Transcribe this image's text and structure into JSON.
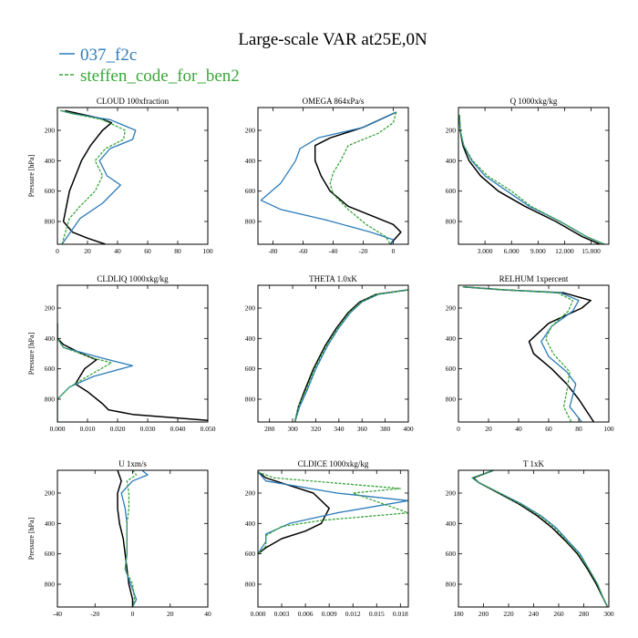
{
  "figure": {
    "title": "Large-scale VAR at25E,0N",
    "colors": {
      "series1": "#2b7bba",
      "series2": "#3aa53a",
      "obs": "#000000"
    },
    "legend": [
      {
        "label": "037_f2c",
        "color": "#2b7bba",
        "dashed": false
      },
      {
        "label": "steffen_code_for_ben2",
        "color": "#3aa53a",
        "dashed": true
      }
    ]
  },
  "chart_data": [
    {
      "type": "line",
      "title": "CLOUD  100xfraction",
      "xlabel": "",
      "ylabel": "Pressure [hPa]",
      "xlim": [
        0,
        100
      ],
      "ylim": [
        950,
        50
      ],
      "grid": false,
      "xticks": [
        0,
        20,
        40,
        60,
        80,
        100
      ],
      "xtick_labels": [
        "0",
        "20",
        "40",
        "60",
        "80",
        "100"
      ],
      "yticks": [
        200,
        400,
        600,
        800
      ],
      "ytick_labels": [
        "200",
        "400",
        "600",
        "800"
      ],
      "series": [
        {
          "name": "",
          "role": "obs",
          "x": [
            5,
            28,
            36,
            30,
            22,
            16,
            12,
            8,
            6,
            4,
            10,
            20,
            32
          ],
          "y": [
            70,
            120,
            150,
            200,
            300,
            400,
            500,
            600,
            700,
            800,
            870,
            910,
            950
          ]
        },
        {
          "name": "037_f2c",
          "x": [
            2,
            10,
            35,
            52,
            50,
            35,
            28,
            33,
            42,
            30,
            15,
            8,
            3
          ],
          "y": [
            70,
            90,
            130,
            200,
            260,
            320,
            400,
            500,
            560,
            680,
            780,
            880,
            950
          ]
        },
        {
          "name": "steffen_code_for_ben2",
          "dashed": true,
          "x": [
            2,
            10,
            30,
            45,
            44,
            32,
            25,
            30,
            25,
            15,
            8,
            5,
            3
          ],
          "y": [
            70,
            90,
            130,
            200,
            260,
            320,
            400,
            500,
            600,
            700,
            780,
            880,
            950
          ]
        }
      ]
    },
    {
      "type": "line",
      "title": "OMEGA  864xPa/s",
      "xlabel": "",
      "ylabel": "",
      "xlim": [
        -90,
        10
      ],
      "ylim": [
        950,
        50
      ],
      "grid": false,
      "xticks": [
        -80,
        -60,
        -40,
        -20,
        0
      ],
      "xtick_labels": [
        "-80",
        "-60",
        "-40",
        "-20",
        "0"
      ],
      "yticks": [
        200,
        400,
        600,
        800
      ],
      "ytick_labels": [
        "200",
        "400",
        "600",
        "800"
      ],
      "series": [
        {
          "name": "",
          "role": "obs",
          "x": [
            2,
            -20,
            -42,
            -52,
            -52,
            -48,
            -42,
            -30,
            -15,
            0,
            5,
            -2
          ],
          "y": [
            80,
            180,
            250,
            300,
            400,
            500,
            600,
            700,
            760,
            820,
            870,
            950
          ]
        },
        {
          "name": "037_f2c",
          "x": [
            2,
            -20,
            -50,
            -62,
            -65,
            -75,
            -88,
            -75,
            -45,
            -15,
            0,
            -2
          ],
          "y": [
            80,
            180,
            250,
            320,
            400,
            550,
            660,
            720,
            790,
            870,
            920,
            950
          ]
        },
        {
          "name": "steffen_code_for_ben2",
          "dashed": true,
          "x": [
            2,
            0,
            -10,
            -30,
            -35,
            -40,
            -42,
            -40,
            -30,
            -18,
            -5,
            -2
          ],
          "y": [
            80,
            150,
            220,
            300,
            400,
            480,
            550,
            620,
            720,
            820,
            900,
            950
          ]
        }
      ]
    },
    {
      "type": "line",
      "title": "Q  1000xkg/kg",
      "xlabel": "",
      "ylabel": "",
      "xlim": [
        0,
        17
      ],
      "ylim": [
        950,
        50
      ],
      "grid": false,
      "xticks": [
        3,
        6,
        9,
        12,
        15
      ],
      "xtick_labels": [
        "3.000",
        "6.000",
        "9.000",
        "12.000",
        "15.000"
      ],
      "yticks": [
        200,
        400,
        600,
        800
      ],
      "ytick_labels": [
        "200",
        "400",
        "600",
        "800"
      ],
      "series": [
        {
          "name": "",
          "role": "obs",
          "x": [
            0.1,
            0.2,
            0.5,
            1.2,
            2.5,
            4.5,
            7.5,
            11,
            14,
            16
          ],
          "y": [
            100,
            200,
            300,
            400,
            500,
            600,
            700,
            800,
            900,
            950
          ]
        },
        {
          "name": "037_f2c",
          "x": [
            0.1,
            0.2,
            0.6,
            1.5,
            3.0,
            5.5,
            8.0,
            11.5,
            14.5,
            16.5
          ],
          "y": [
            100,
            200,
            300,
            400,
            500,
            600,
            700,
            800,
            900,
            950
          ]
        },
        {
          "name": "steffen_code_for_ben2",
          "dashed": true,
          "x": [
            0.1,
            0.2,
            0.6,
            1.6,
            3.3,
            6.0,
            8.2,
            11.5,
            14.5,
            16.5
          ],
          "y": [
            100,
            200,
            300,
            400,
            500,
            600,
            700,
            800,
            900,
            950
          ]
        }
      ]
    },
    {
      "type": "line",
      "title": "CLDLIQ  1000xkg/kg",
      "xlabel": "",
      "ylabel": "Pressure [hPa]",
      "xlim": [
        0,
        0.05
      ],
      "ylim": [
        950,
        50
      ],
      "grid": false,
      "xticks": [
        0,
        0.01,
        0.02,
        0.03,
        0.04,
        0.05
      ],
      "xtick_labels": [
        "0.000",
        "0.010",
        "0.020",
        "0.030",
        "0.040",
        "0.050"
      ],
      "yticks": [
        200,
        400,
        600,
        800
      ],
      "ytick_labels": [
        "200",
        "400",
        "600",
        "800"
      ],
      "series": [
        {
          "name": "",
          "role": "obs",
          "x": [
            0,
            0,
            0.002,
            0.008,
            0.013,
            0.009,
            0.006,
            0.01,
            0.015,
            0.017,
            0.025,
            0.05
          ],
          "y": [
            300,
            400,
            440,
            500,
            540,
            600,
            700,
            750,
            830,
            870,
            900,
            940
          ]
        },
        {
          "name": "037_f2c",
          "x": [
            0,
            0,
            0.002,
            0.015,
            0.025,
            0.012,
            0.004,
            0,
            0
          ],
          "y": [
            300,
            400,
            460,
            530,
            580,
            650,
            720,
            800,
            950
          ]
        },
        {
          "name": "steffen_code_for_ben2",
          "dashed": true,
          "x": [
            0,
            0,
            0.002,
            0.012,
            0.018,
            0.01,
            0.004,
            0,
            0
          ],
          "y": [
            300,
            400,
            460,
            530,
            560,
            650,
            720,
            800,
            950
          ]
        }
      ]
    },
    {
      "type": "line",
      "title": "THETA  1.0xK",
      "xlabel": "",
      "ylabel": "",
      "xlim": [
        270,
        400
      ],
      "ylim": [
        950,
        50
      ],
      "grid": false,
      "xticks": [
        280,
        300,
        320,
        340,
        360,
        380,
        400
      ],
      "xtick_labels": [
        "280",
        "300",
        "320",
        "340",
        "360",
        "380",
        "400"
      ],
      "yticks": [
        200,
        400,
        600,
        800
      ],
      "ytick_labels": [
        "200",
        "400",
        "600",
        "800"
      ],
      "series": [
        {
          "name": "",
          "role": "obs",
          "x": [
            302,
            305,
            310,
            318,
            328,
            338,
            348,
            358,
            372,
            400
          ],
          "y": [
            950,
            850,
            750,
            600,
            450,
            330,
            230,
            160,
            110,
            80
          ]
        },
        {
          "name": "037_f2c",
          "x": [
            302,
            306,
            312,
            320,
            330,
            340,
            350,
            360,
            374,
            400
          ],
          "y": [
            950,
            850,
            750,
            600,
            450,
            330,
            230,
            160,
            110,
            80
          ]
        },
        {
          "name": "steffen_code_for_ben2",
          "dashed": true,
          "x": [
            302,
            305,
            311,
            319,
            329,
            339,
            349,
            359,
            373,
            400
          ],
          "y": [
            950,
            850,
            750,
            600,
            450,
            330,
            230,
            160,
            110,
            80
          ]
        }
      ]
    },
    {
      "type": "line",
      "title": "RELHUM  1xpercent",
      "xlabel": "",
      "ylabel": "",
      "xlim": [
        0,
        100
      ],
      "ylim": [
        950,
        50
      ],
      "grid": false,
      "xticks": [
        0,
        20,
        40,
        60,
        80,
        100
      ],
      "xtick_labels": [
        "0",
        "20",
        "40",
        "60",
        "80",
        "100"
      ],
      "yticks": [
        200,
        400,
        600,
        800
      ],
      "ytick_labels": [
        "200",
        "400",
        "600",
        "800"
      ],
      "series": [
        {
          "name": "",
          "role": "obs",
          "x": [
            3,
            30,
            70,
            88,
            82,
            60,
            47,
            50,
            62,
            72,
            80,
            90
          ],
          "y": [
            60,
            80,
            100,
            150,
            200,
            300,
            420,
            500,
            600,
            700,
            800,
            950
          ]
        },
        {
          "name": "037_f2c",
          "x": [
            3,
            30,
            68,
            80,
            76,
            62,
            55,
            60,
            72,
            78,
            74,
            82
          ],
          "y": [
            60,
            80,
            100,
            150,
            220,
            320,
            420,
            520,
            620,
            700,
            850,
            950
          ]
        },
        {
          "name": "steffen_code_for_ben2",
          "dashed": true,
          "x": [
            3,
            30,
            66,
            76,
            73,
            62,
            58,
            63,
            74,
            72,
            70,
            75
          ],
          "y": [
            60,
            80,
            100,
            150,
            220,
            320,
            400,
            500,
            620,
            750,
            850,
            950
          ]
        }
      ]
    },
    {
      "type": "line",
      "title": "U  1xm/s",
      "xlabel": "",
      "ylabel": "Pressure [hPa]",
      "xlim": [
        -40,
        40
      ],
      "ylim": [
        950,
        50
      ],
      "grid": false,
      "xticks": [
        -40,
        -20,
        0,
        20,
        40
      ],
      "xtick_labels": [
        "-40",
        "-20",
        "0",
        "20",
        "40"
      ],
      "yticks": [
        200,
        400,
        600,
        800
      ],
      "ytick_labels": [
        "200",
        "400",
        "600",
        "800"
      ],
      "series": [
        {
          "name": "",
          "role": "obs",
          "x": [
            -8,
            -6,
            -8,
            -8,
            -7,
            -5,
            -4,
            -3,
            -2,
            0,
            0
          ],
          "y": [
            50,
            120,
            200,
            300,
            400,
            500,
            600,
            700,
            800,
            900,
            950
          ]
        },
        {
          "name": "037_f2c",
          "x": [
            5,
            8,
            0,
            -6,
            -4,
            -3,
            -3,
            -4,
            -1,
            2,
            0
          ],
          "y": [
            50,
            80,
            120,
            200,
            300,
            400,
            600,
            700,
            800,
            900,
            950
          ]
        },
        {
          "name": "steffen_code_for_ben2",
          "dashed": true,
          "x": [
            0,
            2,
            -3,
            -2,
            -2,
            -3,
            -3,
            -4,
            0,
            1,
            0
          ],
          "y": [
            50,
            80,
            120,
            200,
            300,
            400,
            600,
            700,
            800,
            900,
            950
          ]
        }
      ]
    },
    {
      "type": "line",
      "title": "CLDICE  1000xkg/kg",
      "xlabel": "",
      "ylabel": "",
      "xlim": [
        0,
        0.019
      ],
      "ylim": [
        950,
        50
      ],
      "grid": false,
      "xticks": [
        0,
        0.003,
        0.006,
        0.009,
        0.012,
        0.015,
        0.018
      ],
      "xtick_labels": [
        "0.000",
        "0.003",
        "0.006",
        "0.009",
        "0.012",
        "0.015",
        "0.018"
      ],
      "yticks": [
        200,
        400,
        600,
        800
      ],
      "ytick_labels": [
        "200",
        "400",
        "600",
        "800"
      ],
      "series": [
        {
          "name": "",
          "role": "obs",
          "x": [
            0,
            0.001,
            0.004,
            0.007,
            0.009,
            0.008,
            0.006,
            0.003,
            0.001,
            0
          ],
          "y": [
            60,
            100,
            150,
            200,
            300,
            400,
            450,
            500,
            560,
            600
          ]
        },
        {
          "name": "037_f2c",
          "x": [
            0,
            0.001,
            0.01,
            0.019,
            0.01,
            0.004,
            0.001,
            0.001,
            0
          ],
          "y": [
            60,
            120,
            200,
            250,
            330,
            400,
            470,
            520,
            600
          ]
        },
        {
          "name": "steffen_code_for_ben2",
          "dashed": true,
          "x": [
            0,
            0.002,
            0.018,
            0.012,
            0.019,
            0.008,
            0.003,
            0.001,
            0.001,
            0
          ],
          "y": [
            60,
            100,
            170,
            200,
            330,
            380,
            420,
            480,
            550,
            600
          ]
        }
      ]
    },
    {
      "type": "line",
      "title": "T  1xK",
      "xlabel": "",
      "ylabel": "",
      "xlim": [
        180,
        300
      ],
      "ylim": [
        950,
        50
      ],
      "grid": false,
      "xticks": [
        180,
        200,
        220,
        240,
        260,
        280,
        300
      ],
      "xtick_labels": [
        "180",
        "200",
        "220",
        "240",
        "260",
        "280",
        "300"
      ],
      "yticks": [
        200,
        400,
        600,
        800
      ],
      "ytick_labels": [
        "200",
        "400",
        "600",
        "800"
      ],
      "series": [
        {
          "name": "",
          "role": "obs",
          "x": [
            208,
            192,
            196,
            212,
            228,
            243,
            255,
            266,
            275,
            283,
            290,
            296,
            299
          ],
          "y": [
            50,
            100,
            130,
            200,
            270,
            350,
            430,
            520,
            600,
            700,
            800,
            900,
            950
          ]
        },
        {
          "name": "037_f2c",
          "x": [
            208,
            191,
            196,
            213,
            230,
            246,
            258,
            268,
            277,
            284,
            291,
            296,
            299
          ],
          "y": [
            50,
            100,
            130,
            200,
            270,
            350,
            430,
            520,
            600,
            700,
            800,
            900,
            950
          ]
        },
        {
          "name": "steffen_code_for_ben2",
          "dashed": true,
          "x": [
            208,
            191,
            196,
            213,
            229,
            245,
            257,
            267,
            276,
            284,
            291,
            296,
            299
          ],
          "y": [
            50,
            100,
            130,
            200,
            270,
            350,
            430,
            520,
            600,
            700,
            800,
            900,
            950
          ]
        }
      ]
    }
  ]
}
